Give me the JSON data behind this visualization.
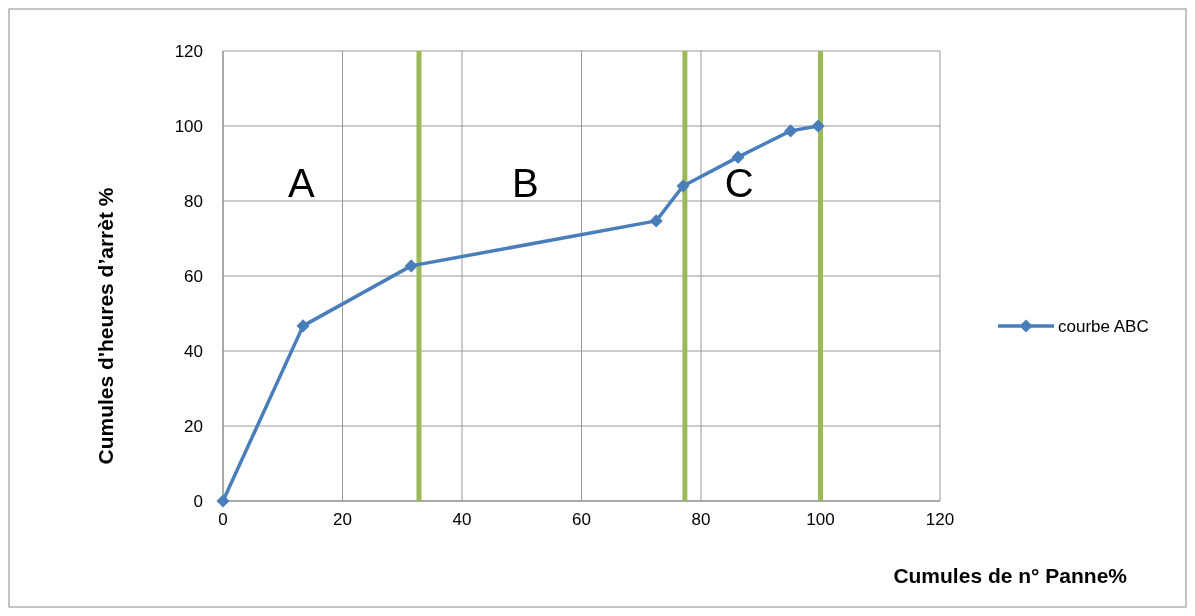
{
  "chart_data": {
    "type": "line",
    "xlabel": "Cumules de n° Panne%",
    "ylabel": "Cumules d'heures d’arrèt %",
    "x": [
      0,
      13.4,
      31.5,
      72.5,
      77,
      86.2,
      95,
      99.6
    ],
    "series": [
      {
        "name": "courbe ABC",
        "color": "#4a7ebb",
        "values": [
          0,
          46.7,
          62.7,
          74.7,
          84,
          91.7,
          98.7,
          100
        ]
      }
    ],
    "xlim": [
      0,
      120
    ],
    "ylim": [
      0,
      120
    ],
    "xticks": [
      0,
      20,
      40,
      60,
      80,
      100,
      120
    ],
    "yticks": [
      0,
      20,
      40,
      60,
      80,
      100,
      120
    ],
    "grid": true,
    "legend": "right",
    "marker": "diamond",
    "line_style": "solid",
    "ref_lines": [
      {
        "axis": "x",
        "value": 32.8,
        "color": "#9bbb59"
      },
      {
        "axis": "x",
        "value": 77.3,
        "color": "#9bbb59"
      },
      {
        "axis": "x",
        "value": 100,
        "color": "#9bbb59"
      }
    ],
    "annotations": [
      "A",
      "B",
      "C"
    ]
  }
}
